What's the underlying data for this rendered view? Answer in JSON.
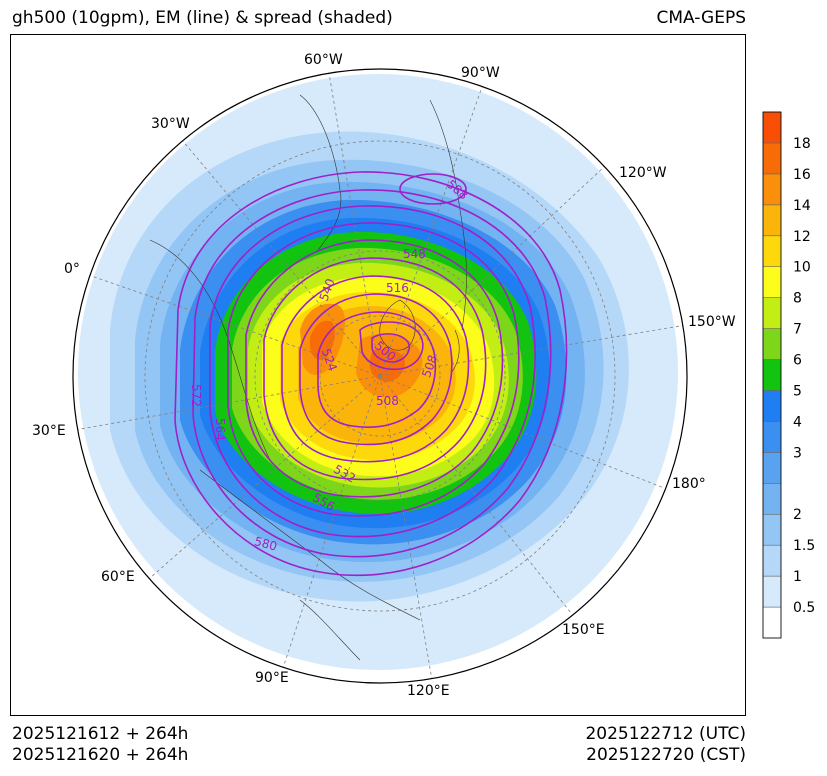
{
  "header": {
    "title_left": "gh500 (10gpm), EM (line) & spread (shaded)",
    "title_right": "CMA-GEPS"
  },
  "footer": {
    "init_utc": "2025121612 + 264h",
    "init_cst": "2025121620 + 264h",
    "valid_utc": "2025122712 (UTC)",
    "valid_cst": "2025122720 (CST)"
  },
  "map": {
    "projection": "north-polar-stereographic",
    "longitude_labels": [
      "60°W",
      "90°W",
      "30°W",
      "120°W",
      "0°",
      "150°W",
      "30°E",
      "180°",
      "60°E",
      "150°E",
      "90°E",
      "120°E"
    ],
    "contour_labels": [
      "588",
      "548",
      "540",
      "516",
      "500",
      "524",
      "508",
      "508",
      "572",
      "564",
      "532",
      "556",
      "580"
    ]
  },
  "colorbar": {
    "ticks": [
      "0.5",
      "1",
      "1.5",
      "2",
      "2.5",
      "3",
      "4",
      "5",
      "6",
      "7",
      "8",
      "10",
      "12",
      "14",
      "16",
      "18"
    ],
    "tick_labels_shown": [
      "0.5",
      "1",
      "1.5",
      "2",
      "3",
      "4",
      "5",
      "6",
      "7",
      "8",
      "10",
      "12",
      "14",
      "16",
      "18"
    ],
    "colors": [
      "#ffffff",
      "#d6eafb",
      "#b5d8f8",
      "#93c5f5",
      "#74b3f2",
      "#58a2f0",
      "#3b8ff0",
      "#1f7ef2",
      "#12c30f",
      "#7ed61a",
      "#c3ee14",
      "#fdfd1c",
      "#fdd90b",
      "#fbb40a",
      "#f98f0a",
      "#f86c08",
      "#f84e06"
    ]
  }
}
